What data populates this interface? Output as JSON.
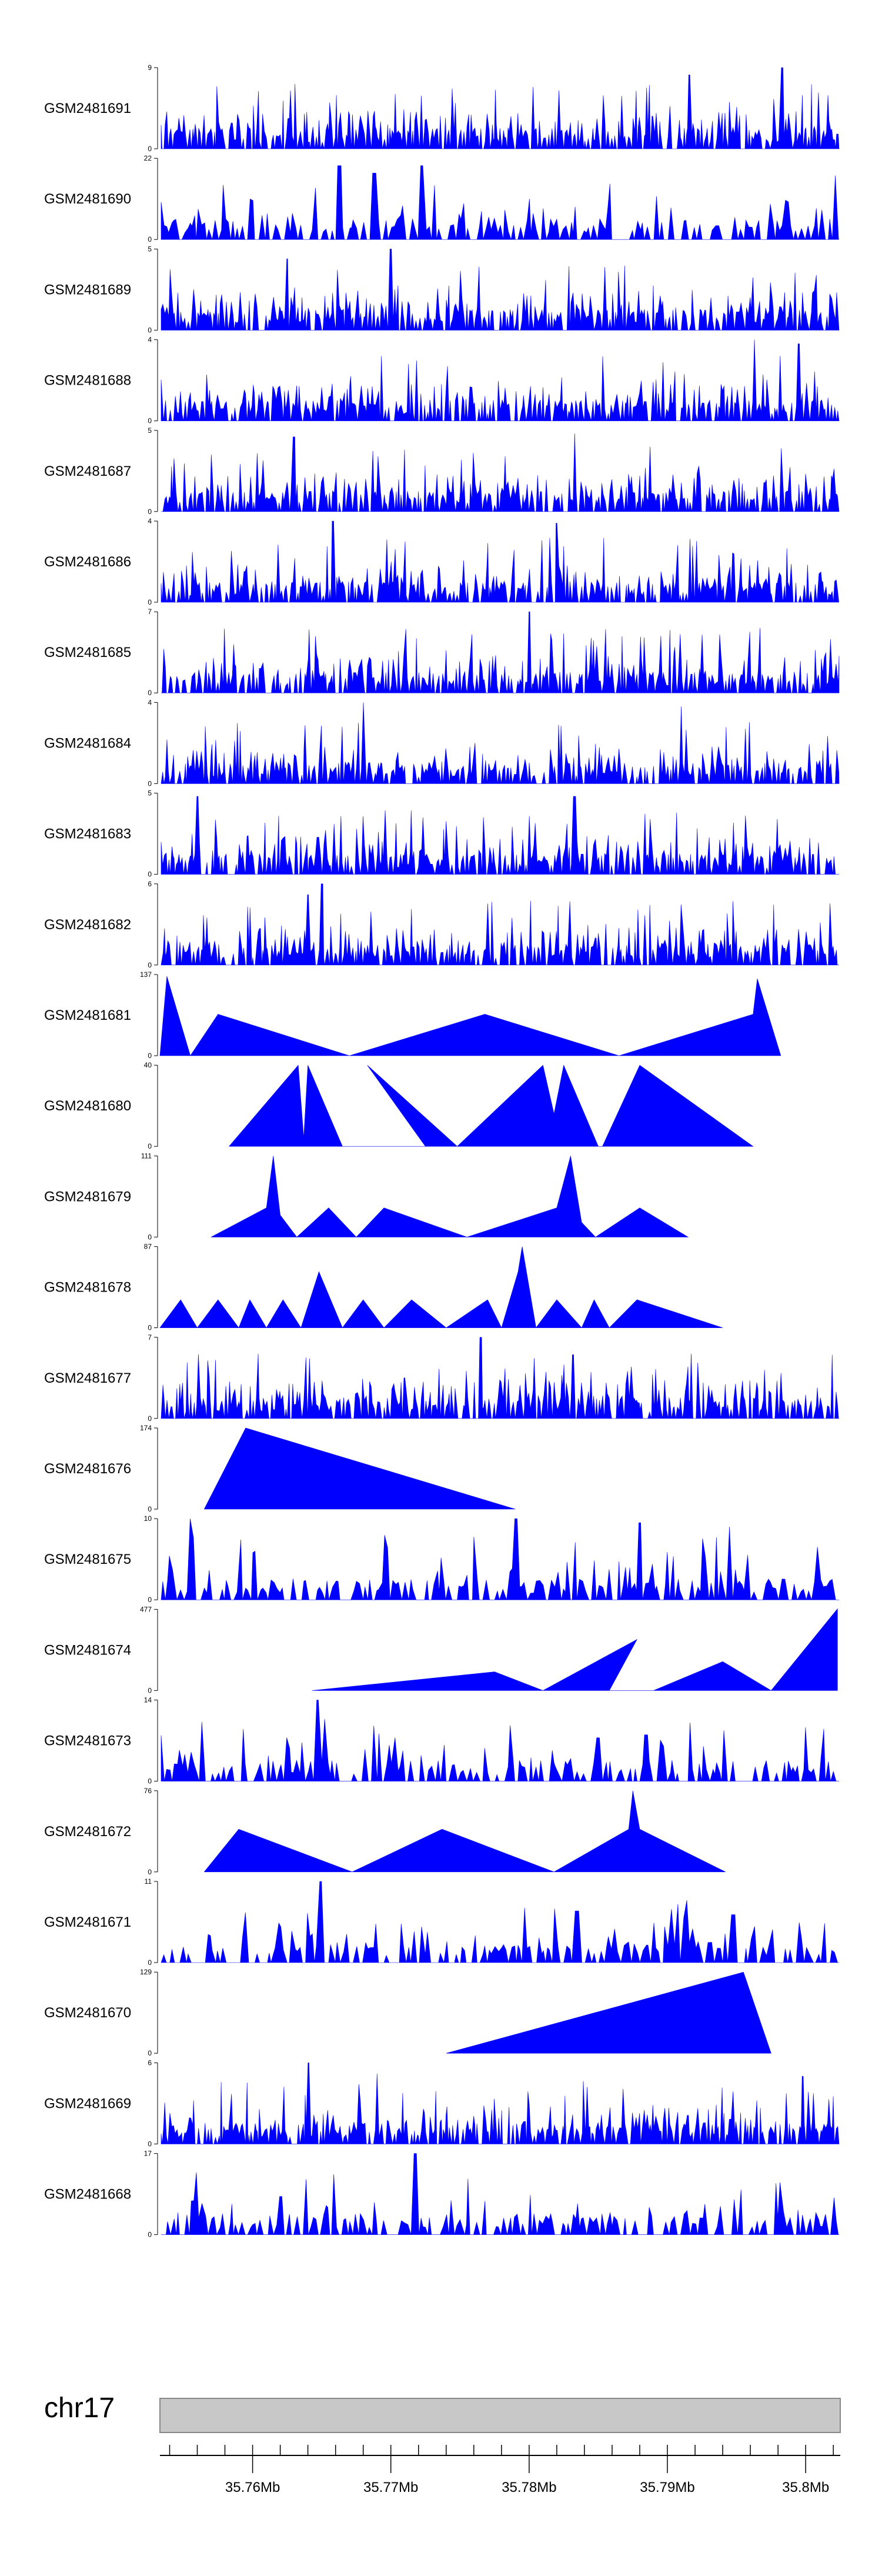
{
  "chart_data": {
    "type": "area",
    "chromosome": "chr17",
    "region_mb": [
      35.7533,
      35.8025
    ],
    "axis_tick_labels": [
      "35.76Mb",
      "35.77Mb",
      "35.78Mb",
      "35.79Mb",
      "35.8Mb"
    ],
    "axis_tick_values_mb": [
      35.76,
      35.77,
      35.78,
      35.79,
      35.8
    ],
    "minor_tick_step_mb": 0.002,
    "fill_color": "#0000ff",
    "axis_color": "#000000",
    "ideogram_color": "#c8c8c8",
    "tracks": [
      {
        "name": "GSM2481691",
        "ymax": 9,
        "ymax_label": "9",
        "pattern": "dense",
        "seed": 11,
        "peaks": [
          [
            35.7916,
            8.2
          ],
          [
            35.7983,
            9
          ]
        ],
        "profile": null
      },
      {
        "name": "GSM2481690",
        "ymax": 22,
        "ymax_label": "22",
        "pattern": "mixed",
        "seed": 23,
        "peaks": [
          [
            35.7663,
            20
          ],
          [
            35.7688,
            18
          ],
          [
            35.7723,
            20
          ],
          [
            35.7645,
            14
          ]
        ],
        "profile": null
      },
      {
        "name": "GSM2481689",
        "ymax": 5,
        "ymax_label": "5",
        "pattern": "dense",
        "seed": 37,
        "peaks": [
          [
            35.77,
            5
          ],
          [
            35.7625,
            4.4
          ]
        ],
        "profile": null
      },
      {
        "name": "GSM2481688",
        "ymax": 4,
        "ymax_label": "4",
        "pattern": "dense",
        "seed": 41,
        "peaks": [
          [
            35.7963,
            4
          ],
          [
            35.7995,
            3.8
          ]
        ],
        "profile": null
      },
      {
        "name": "GSM2481687",
        "ymax": 5,
        "ymax_label": "5",
        "pattern": "dense",
        "seed": 53,
        "peaks": [
          [
            35.7833,
            4.8
          ],
          [
            35.763,
            4.6
          ]
        ],
        "profile": null
      },
      {
        "name": "GSM2481686",
        "ymax": 4,
        "ymax_label": "4",
        "pattern": "dense",
        "seed": 67,
        "peaks": [
          [
            35.7658,
            4
          ],
          [
            35.782,
            3.9
          ]
        ],
        "profile": null
      },
      {
        "name": "GSM2481685",
        "ymax": 7,
        "ymax_label": "7",
        "pattern": "dense",
        "seed": 71,
        "peaks": [
          [
            35.78,
            7
          ],
          [
            35.7855,
            5.5
          ]
        ],
        "profile": null
      },
      {
        "name": "GSM2481684",
        "ymax": 4,
        "ymax_label": "4",
        "pattern": "dense",
        "seed": 83,
        "peaks": [
          [
            35.768,
            4
          ],
          [
            35.791,
            3.8
          ]
        ],
        "profile": null
      },
      {
        "name": "GSM2481683",
        "ymax": 5,
        "ymax_label": "5",
        "pattern": "dense",
        "seed": 97,
        "peaks": [
          [
            35.756,
            4.8
          ],
          [
            35.7833,
            4.8
          ]
        ],
        "profile": null
      },
      {
        "name": "GSM2481682",
        "ymax": 6,
        "ymax_label": "6",
        "pattern": "dense",
        "seed": 101,
        "peaks": [
          [
            35.765,
            6
          ],
          [
            35.764,
            5.2
          ]
        ],
        "profile": null
      },
      {
        "name": "GSM2481681",
        "ymax": 137,
        "ymax_label": "137",
        "pattern": "sparse",
        "seed": 0,
        "peaks": [],
        "profile": [
          [
            35.7533,
            0
          ],
          [
            35.7538,
            134
          ],
          [
            35.7555,
            0
          ],
          [
            35.7575,
            70
          ],
          [
            35.767,
            0
          ],
          [
            35.7768,
            70
          ],
          [
            35.7865,
            0
          ],
          [
            35.7962,
            70
          ],
          [
            35.7965,
            130
          ],
          [
            35.7982,
            0
          ]
        ]
      },
      {
        "name": "GSM2481680",
        "ymax": 40,
        "ymax_label": "40",
        "pattern": "sparse",
        "seed": 0,
        "peaks": [],
        "profile": [
          [
            35.7583,
            0
          ],
          [
            35.7633,
            40
          ],
          [
            35.7637,
            4
          ],
          [
            35.764,
            40
          ],
          [
            35.7665,
            0
          ],
          [
            35.7725,
            0
          ],
          [
            35.7683,
            40
          ],
          [
            35.7748,
            0
          ],
          [
            35.781,
            40
          ],
          [
            35.7818,
            16
          ],
          [
            35.7825,
            40
          ],
          [
            35.785,
            0
          ],
          [
            35.7793,
            0
          ],
          [
            35.7853,
            0
          ],
          [
            35.788,
            40
          ],
          [
            35.7962,
            0
          ]
        ]
      },
      {
        "name": "GSM2481679",
        "ymax": 111,
        "ymax_label": "111",
        "pattern": "sparse",
        "seed": 0,
        "peaks": [],
        "profile": [
          [
            35.757,
            0
          ],
          [
            35.761,
            40
          ],
          [
            35.7615,
            111
          ],
          [
            35.762,
            30
          ],
          [
            35.7632,
            0
          ],
          [
            35.7655,
            40
          ],
          [
            35.7675,
            0
          ],
          [
            35.7695,
            40
          ],
          [
            35.7755,
            0
          ],
          [
            35.782,
            40
          ],
          [
            35.783,
            111
          ],
          [
            35.7838,
            20
          ],
          [
            35.7848,
            0
          ],
          [
            35.788,
            40
          ],
          [
            35.7915,
            0
          ]
        ]
      },
      {
        "name": "GSM2481678",
        "ymax": 87,
        "ymax_label": "87",
        "pattern": "sparse",
        "seed": 0,
        "peaks": [],
        "profile": [
          [
            35.7533,
            0
          ],
          [
            35.7548,
            30
          ],
          [
            35.756,
            0
          ],
          [
            35.7575,
            30
          ],
          [
            35.759,
            0
          ],
          [
            35.7598,
            30
          ],
          [
            35.761,
            0
          ],
          [
            35.7622,
            30
          ],
          [
            35.7635,
            0
          ],
          [
            35.7648,
            60
          ],
          [
            35.7665,
            0
          ],
          [
            35.768,
            30
          ],
          [
            35.7695,
            0
          ],
          [
            35.7715,
            30
          ],
          [
            35.774,
            0
          ],
          [
            35.777,
            30
          ],
          [
            35.778,
            0
          ],
          [
            35.7792,
            60
          ],
          [
            35.7795,
            87
          ],
          [
            35.7805,
            0
          ],
          [
            35.782,
            30
          ],
          [
            35.7838,
            0
          ],
          [
            35.7847,
            30
          ],
          [
            35.7858,
            0
          ],
          [
            35.7878,
            30
          ],
          [
            35.794,
            0
          ]
        ]
      },
      {
        "name": "GSM2481677",
        "ymax": 7,
        "ymax_label": "7",
        "pattern": "dense",
        "seed": 131,
        "peaks": [
          [
            35.7765,
            7
          ],
          [
            35.7832,
            5.5
          ],
          [
            35.771,
            3.5
          ]
        ],
        "profile": null
      },
      {
        "name": "GSM2481676",
        "ymax": 174,
        "ymax_label": "174",
        "pattern": "sparse",
        "seed": 0,
        "peaks": [],
        "profile": [
          [
            35.7565,
            0
          ],
          [
            35.7595,
            174
          ],
          [
            35.779,
            0
          ]
        ]
      },
      {
        "name": "GSM2481675",
        "ymax": 10,
        "ymax_label": "10",
        "pattern": "sparse-dense",
        "seed": 149,
        "peaks": [
          [
            35.7555,
            10
          ],
          [
            35.779,
            10
          ],
          [
            35.788,
            9.5
          ],
          [
            35.7945,
            9
          ]
        ],
        "profile": null
      },
      {
        "name": "GSM2481674",
        "ymax": 477,
        "ymax_label": "477",
        "pattern": "sparse",
        "seed": 0,
        "peaks": [],
        "profile": [
          [
            35.7643,
            0
          ],
          [
            35.7775,
            110
          ],
          [
            35.781,
            0
          ],
          [
            35.7878,
            300
          ],
          [
            35.7858,
            0
          ],
          [
            35.789,
            0
          ],
          [
            35.794,
            170
          ],
          [
            35.7975,
            0
          ],
          [
            35.8023,
            480
          ],
          [
            35.8023,
            0
          ]
        ]
      },
      {
        "name": "GSM2481673",
        "ymax": 14,
        "ymax_label": "14",
        "pattern": "sparse-dense",
        "seed": 163,
        "peaks": [
          [
            35.7648,
            14
          ],
          [
            35.7885,
            8
          ],
          [
            35.785,
            7.5
          ]
        ],
        "profile": null
      },
      {
        "name": "GSM2481672",
        "ymax": 76,
        "ymax_label": "76",
        "pattern": "sparse",
        "seed": 0,
        "peaks": [],
        "profile": [
          [
            35.7565,
            0
          ],
          [
            35.759,
            40
          ],
          [
            35.7672,
            0
          ],
          [
            35.7737,
            40
          ],
          [
            35.7818,
            0
          ],
          [
            35.7872,
            40
          ],
          [
            35.7875,
            76
          ],
          [
            35.788,
            40
          ],
          [
            35.7942,
            0
          ]
        ]
      },
      {
        "name": "GSM2481671",
        "ymax": 11,
        "ymax_label": "11",
        "pattern": "sparse-dense",
        "seed": 181,
        "peaks": [
          [
            35.765,
            11
          ],
          [
            35.7835,
            7
          ],
          [
            35.7948,
            6.5
          ]
        ],
        "profile": null
      },
      {
        "name": "GSM2481670",
        "ymax": 129,
        "ymax_label": "129",
        "pattern": "sparse",
        "seed": 0,
        "peaks": [],
        "profile": [
          [
            35.774,
            0
          ],
          [
            35.7955,
            129
          ],
          [
            35.7975,
            0
          ]
        ]
      },
      {
        "name": "GSM2481669",
        "ymax": 6,
        "ymax_label": "6",
        "pattern": "dense",
        "seed": 197,
        "peaks": [
          [
            35.764,
            6
          ],
          [
            35.769,
            5.2
          ],
          [
            35.7998,
            5
          ]
        ],
        "profile": null
      },
      {
        "name": "GSM2481668",
        "ymax": 17,
        "ymax_label": "17",
        "pattern": "sparse-dense",
        "seed": 211,
        "peaks": [
          [
            35.7718,
            17
          ],
          [
            35.762,
            8
          ]
        ],
        "profile": null
      }
    ]
  }
}
